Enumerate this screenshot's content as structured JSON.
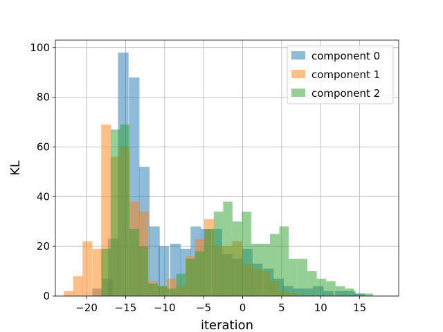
{
  "chart_data": {
    "type": "bar",
    "title": "",
    "xlabel": "iteration",
    "ylabel": "KL",
    "xlim": [
      -24.0,
      20.0
    ],
    "ylim": [
      0,
      103
    ],
    "xticks": [
      -20,
      -15,
      -10,
      -5,
      0,
      5,
      10,
      15
    ],
    "xtick_labels": [
      "−20",
      "−15",
      "−10",
      "−5",
      "0",
      "5",
      "10",
      "15"
    ],
    "yticks": [
      0,
      20,
      40,
      60,
      80,
      100
    ],
    "ytick_labels": [
      "0",
      "20",
      "40",
      "60",
      "80",
      "100"
    ],
    "grid": true,
    "legend_position": "top-right",
    "series": [
      {
        "name": "component 0",
        "color": "#1f77b4",
        "bins": [
          [
            -18.6,
            3
          ],
          [
            -17.3,
            7
          ],
          [
            -16.6,
            23
          ],
          [
            -15.3,
            98
          ],
          [
            -13.9,
            88
          ],
          [
            -12.6,
            52
          ],
          [
            -11.3,
            28
          ],
          [
            -10.1,
            20
          ],
          [
            -8.6,
            21
          ],
          [
            -7.3,
            19
          ],
          [
            -6.0,
            28
          ],
          [
            -4.7,
            27
          ],
          [
            -3.3,
            27
          ],
          [
            -2.0,
            17
          ],
          [
            -0.7,
            15
          ],
          [
            0.6,
            19
          ],
          [
            1.9,
            13
          ],
          [
            3.3,
            11
          ],
          [
            4.6,
            7
          ],
          [
            5.8,
            4
          ],
          [
            7.1,
            3
          ],
          [
            8.4,
            3
          ],
          [
            9.7,
            4
          ],
          [
            11.0,
            2
          ],
          [
            12.5,
            2
          ],
          [
            13.8,
            2
          ],
          [
            15.0,
            1
          ]
        ],
        "width": 1.35
      },
      {
        "name": "component 1",
        "color": "#ff7f0e",
        "bins": [
          [
            -22.3,
            2
          ],
          [
            -21.1,
            8
          ],
          [
            -19.9,
            22
          ],
          [
            -18.6,
            19
          ],
          [
            -17.5,
            69
          ],
          [
            -16.3,
            56
          ],
          [
            -15.1,
            60
          ],
          [
            -13.9,
            38
          ],
          [
            -12.7,
            34
          ],
          [
            -11.5,
            6
          ],
          [
            -10.3,
            4
          ],
          [
            -9.1,
            7
          ],
          [
            -7.9,
            4
          ],
          [
            -6.7,
            16
          ],
          [
            -5.5,
            23
          ],
          [
            -4.3,
            31
          ],
          [
            -3.1,
            20
          ],
          [
            -1.9,
            20
          ],
          [
            -0.7,
            22
          ],
          [
            0.5,
            13
          ],
          [
            1.7,
            11
          ],
          [
            2.9,
            10
          ],
          [
            4.1,
            6
          ],
          [
            5.3,
            2
          ],
          [
            6.5,
            1
          ]
        ],
        "width": 1.25
      },
      {
        "name": "component 2",
        "color": "#2ca02c",
        "bins": [
          [
            -17.5,
            19
          ],
          [
            -16.3,
            67
          ],
          [
            -15.1,
            69
          ],
          [
            -13.9,
            27
          ],
          [
            -12.7,
            20
          ],
          [
            -11.5,
            5
          ],
          [
            -10.3,
            4
          ],
          [
            -9.1,
            3
          ],
          [
            -7.9,
            9
          ],
          [
            -6.7,
            15
          ],
          [
            -5.5,
            18
          ],
          [
            -4.3,
            27
          ],
          [
            -3.1,
            34
          ],
          [
            -1.9,
            38
          ],
          [
            -0.7,
            30
          ],
          [
            0.5,
            34
          ],
          [
            1.7,
            21
          ],
          [
            2.9,
            21
          ],
          [
            4.1,
            25
          ],
          [
            5.3,
            28
          ],
          [
            6.5,
            15
          ],
          [
            7.7,
            15
          ],
          [
            8.9,
            10
          ],
          [
            10.1,
            7
          ],
          [
            11.3,
            6
          ],
          [
            12.5,
            4
          ],
          [
            13.7,
            3
          ],
          [
            14.9,
            1
          ],
          [
            16.1,
            1
          ]
        ],
        "width": 1.2
      }
    ]
  }
}
